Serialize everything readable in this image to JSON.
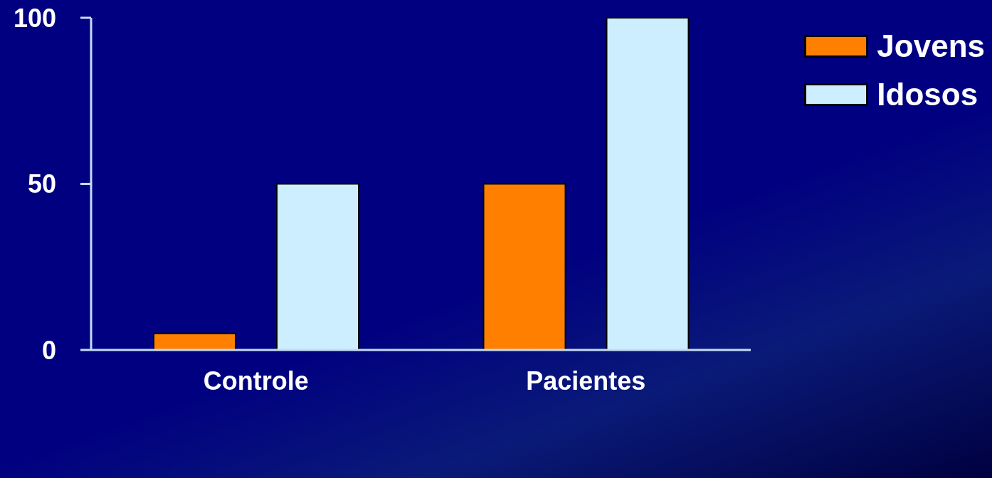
{
  "chart_data": {
    "type": "bar",
    "categories": [
      "Controle",
      "Pacientes"
    ],
    "series": [
      {
        "name": "Jovens",
        "color": "#ff8000",
        "values": [
          5,
          50
        ]
      },
      {
        "name": "Idosos",
        "color": "#cdeefe",
        "values": [
          50,
          100
        ]
      }
    ],
    "ylim": [
      0,
      100
    ],
    "yticks": [
      0,
      50,
      100
    ],
    "legend": "top right"
  }
}
